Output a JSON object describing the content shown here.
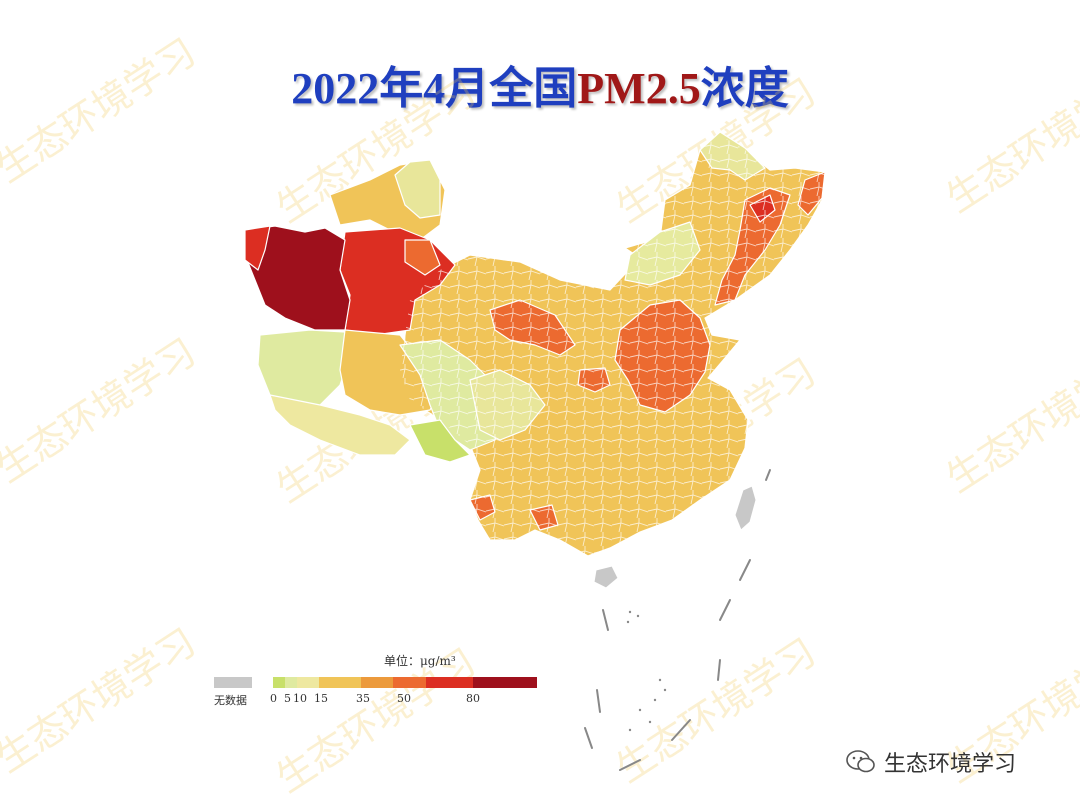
{
  "title": {
    "part1": "2022年4月全国",
    "part2": "PM",
    "part3": "2.5",
    "part4": "浓度"
  },
  "legend": {
    "unit": "单位：μg/m³",
    "nodata_label": "无数据",
    "ticks": [
      "0",
      "5",
      "10",
      "15",
      "35",
      "50",
      "80"
    ],
    "bins": [
      {
        "color": "#c8e06a"
      },
      {
        "color": "#dfeaa0"
      },
      {
        "color": "#eee8a0"
      },
      {
        "color": "#f0c458"
      },
      {
        "color": "#ec9a3c"
      },
      {
        "color": "#ec6a30"
      },
      {
        "color": "#dc2e22"
      },
      {
        "color": "#9e101c"
      }
    ],
    "nodata_color": "#c8c8c8"
  },
  "map": {
    "regions": [
      {
        "name": "west-xinjiang",
        "class": ">80",
        "color": "#9e101c"
      },
      {
        "name": "east-xinjiang",
        "class": "50-80",
        "color": "#dc2e22"
      },
      {
        "name": "north-china-plain",
        "class": "35-50",
        "color": "#ec6a30"
      },
      {
        "name": "northeast-band",
        "class": "35-50",
        "color": "#ec6a30"
      },
      {
        "name": "central-south",
        "class": "15-35",
        "color": "#f0c458"
      },
      {
        "name": "tibet-plateau",
        "class": "5-10",
        "color": "#dfeaa0"
      },
      {
        "name": "north-mongolia-border",
        "class": "10-15",
        "color": "#eee8a0"
      },
      {
        "name": "southwest-tibet",
        "class": "0-5",
        "color": "#c8e06a"
      },
      {
        "name": "taiwan",
        "class": "no-data",
        "color": "#c8c8c8"
      },
      {
        "name": "hainan",
        "class": "no-data",
        "color": "#c8c8c8"
      }
    ]
  },
  "watermark": "生态环境学习",
  "footer": {
    "account": "生态环境学习",
    "icon": "wechat-icon"
  }
}
